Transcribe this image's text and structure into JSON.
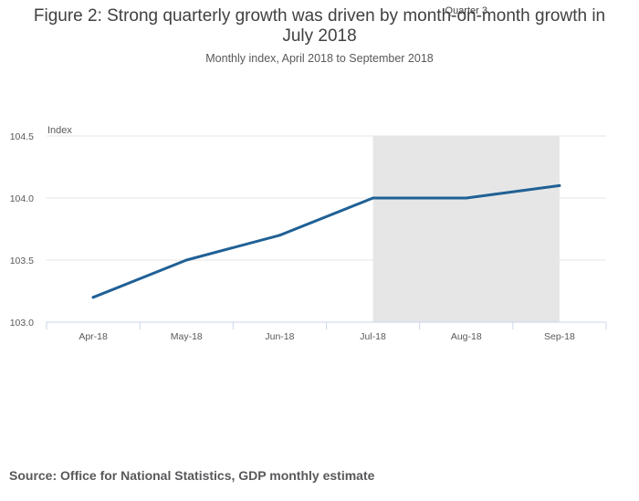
{
  "title": "Figure 2: Strong quarterly growth was driven by month-on-month growth in July 2018",
  "subtitle": "Monthly index, April 2018 to September 2018",
  "source": "Source: Office for National Statistics, GDP monthly estimate",
  "colors": {
    "line": "#206095",
    "band": "#e6e6e6",
    "grid": "#e6e6e6",
    "axis": "#ccd6eb"
  },
  "chart_data": {
    "type": "line",
    "title": "Figure 2: Strong quarterly growth was driven by month-on-month growth in July 2018",
    "subtitle": "Monthly index, April 2018 to September 2018",
    "xlabel": "",
    "ylabel": "Index",
    "categories": [
      "Apr-18",
      "May-18",
      "Jun-18",
      "Jul-18",
      "Aug-18",
      "Sep-18"
    ],
    "series": [
      {
        "name": "Index",
        "values": [
          103.2,
          103.5,
          103.7,
          104.0,
          104.0,
          104.1
        ]
      }
    ],
    "ylim": [
      103.0,
      104.5
    ],
    "yticks": [
      103.0,
      103.5,
      104.0,
      104.5
    ],
    "ytick_labels": [
      "103.0",
      "103.5",
      "104.0",
      "104.5"
    ],
    "grid": true,
    "highlight_band": {
      "label": "Quarter 3",
      "from_category": "Jul-18",
      "to_category": "Sep-18"
    }
  }
}
